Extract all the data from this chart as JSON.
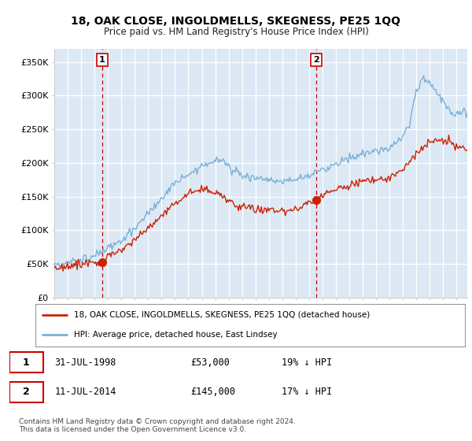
{
  "title": "18, OAK CLOSE, INGOLDMELLS, SKEGNESS, PE25 1QQ",
  "subtitle": "Price paid vs. HM Land Registry's House Price Index (HPI)",
  "ylabel_vals": [
    "£0",
    "£50K",
    "£100K",
    "£150K",
    "£200K",
    "£250K",
    "£300K",
    "£350K"
  ],
  "yticks": [
    0,
    50000,
    100000,
    150000,
    200000,
    250000,
    300000,
    350000
  ],
  "ylim": [
    0,
    370000
  ],
  "xlim_start": 1995.0,
  "xlim_end": 2025.8,
  "purchase1": {
    "date_num": 1998.58,
    "price": 53000,
    "label": "1"
  },
  "purchase2": {
    "date_num": 2014.53,
    "price": 145000,
    "label": "2"
  },
  "legend1": "18, OAK CLOSE, INGOLDMELLS, SKEGNESS, PE25 1QQ (detached house)",
  "legend2": "HPI: Average price, detached house, East Lindsey",
  "hpi_color": "#7bafd4",
  "price_color": "#cc2200",
  "vline_color": "#cc0000",
  "bg_color": "#ffffff",
  "plot_bg": "#dce9f5"
}
